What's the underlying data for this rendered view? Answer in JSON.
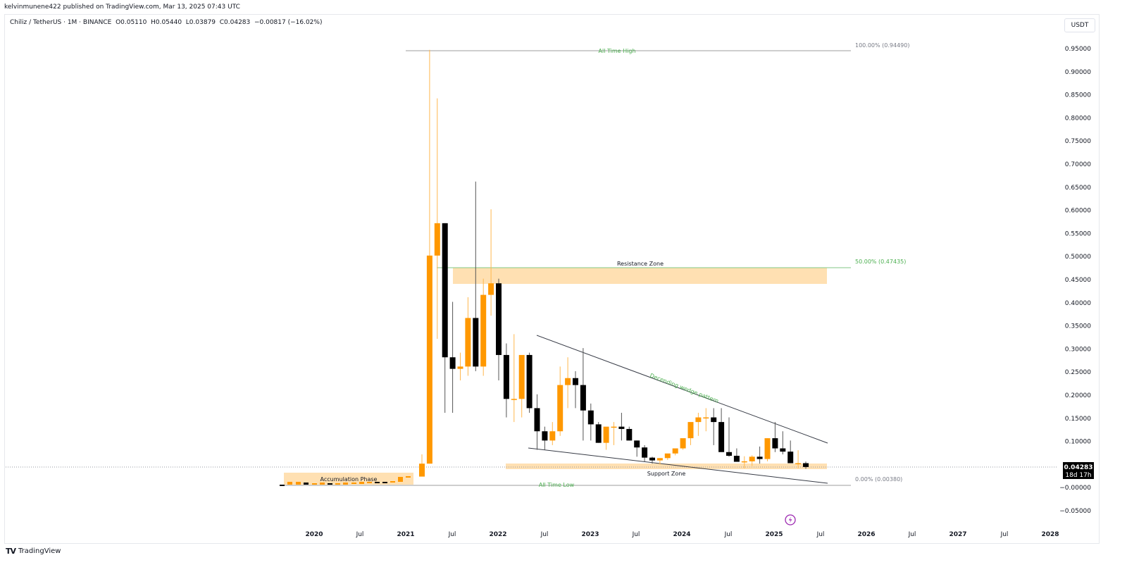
{
  "header": {
    "published": "kelvinmunene422 published on TradingView.com, Mar 13, 2025 07:43 UTC",
    "symbol": "Chiliz / TetherUS · 1M · BINANCE",
    "ohlc": "O0.05110  H0.05440  L0.03879  C0.04283  −0.00817 (−16.02%)",
    "currency_button": "USDT"
  },
  "price_axis": {
    "labels": [
      "0.95000",
      "0.90000",
      "0.85000",
      "0.80000",
      "0.75000",
      "0.70000",
      "0.65000",
      "0.60000",
      "0.55000",
      "0.50000",
      "0.45000",
      "0.40000",
      "0.35000",
      "0.30000",
      "0.25000",
      "0.20000",
      "0.15000",
      "0.10000",
      "0.05000",
      "−0.00000",
      "−0.05000"
    ],
    "current_price": "0.04283",
    "countdown": "18d 17h"
  },
  "time_axis": {
    "labels": [
      "2020",
      "Jul",
      "2021",
      "Jul",
      "2022",
      "Jul",
      "2023",
      "Jul",
      "2024",
      "Jul",
      "2025",
      "Jul",
      "2026",
      "Jul",
      "2027",
      "Jul",
      "2028"
    ]
  },
  "annotations": {
    "ath_label": "All Time High",
    "ath_fib": "100.00% (0.94490)",
    "resistance_label": "Resistance Zone",
    "resistance_fib": "50.00% (0.47435)",
    "wedge_label": "Decending wedge pattern",
    "support_label": "Support Zone",
    "atl_label": "All Time Low",
    "atl_fib": "0.00% (0.00380)",
    "accumulation_label": "Accumulation Phase"
  },
  "colors": {
    "up": "#ff9800",
    "down": "#000000",
    "zone_fill": "#ffe0b2",
    "fib_green": "#4caf50",
    "event_icon": "#9c27b0"
  },
  "footer": {
    "brand": "TradingView"
  },
  "chart_data": {
    "type": "candlestick",
    "title": "Chiliz / TetherUS · 1M · BINANCE",
    "xlabel": "",
    "ylabel": "USDT",
    "ylim": [
      -0.07,
      0.98
    ],
    "grid": false,
    "x": [
      "2021-01",
      "2021-02",
      "2021-03",
      "2021-04",
      "2021-05",
      "2021-06",
      "2021-07",
      "2021-08",
      "2021-09",
      "2021-10",
      "2021-11",
      "2021-12",
      "2022-01",
      "2022-02",
      "2022-03",
      "2022-04",
      "2022-05",
      "2022-06",
      "2022-07",
      "2022-08",
      "2022-09",
      "2022-10",
      "2022-11",
      "2022-12",
      "2023-01",
      "2023-02",
      "2023-03",
      "2023-04",
      "2023-05",
      "2023-06",
      "2023-07",
      "2023-08",
      "2023-09",
      "2023-10",
      "2023-11",
      "2023-12",
      "2024-01",
      "2024-02",
      "2024-03",
      "2024-04",
      "2024-05",
      "2024-06",
      "2024-07",
      "2024-08",
      "2024-09",
      "2024-10",
      "2024-11",
      "2024-12",
      "2025-01",
      "2025-02",
      "2025-03"
    ],
    "open": [
      0.022,
      0.05,
      0.5,
      0.57,
      0.28,
      0.255,
      0.26,
      0.365,
      0.26,
      0.415,
      0.44,
      0.285,
      0.19,
      0.19,
      0.285,
      0.17,
      0.12,
      0.1,
      0.12,
      0.22,
      0.235,
      0.22,
      0.165,
      0.135,
      0.095,
      0.13,
      0.13,
      0.125,
      0.1,
      0.085,
      0.063,
      0.057,
      0.062,
      0.072,
      0.083,
      0.105,
      0.14,
      0.15,
      0.15,
      0.14,
      0.075,
      0.067,
      0.054,
      0.055,
      0.065,
      0.06,
      0.105,
      0.083,
      0.076,
      0.051,
      0.051
    ],
    "high": [
      0.07,
      0.945,
      0.84,
      0.57,
      0.4,
      0.29,
      0.41,
      0.66,
      0.45,
      0.6,
      0.45,
      0.31,
      0.33,
      0.23,
      0.29,
      0.2,
      0.13,
      0.14,
      0.26,
      0.28,
      0.25,
      0.3,
      0.18,
      0.14,
      0.12,
      0.14,
      0.16,
      0.13,
      0.1,
      0.09,
      0.065,
      0.062,
      0.069,
      0.08,
      0.1,
      0.13,
      0.16,
      0.17,
      0.17,
      0.17,
      0.15,
      0.083,
      0.066,
      0.068,
      0.087,
      0.105,
      0.14,
      0.12,
      0.1,
      0.079,
      0.0544
    ],
    "low": [
      0.022,
      0.05,
      0.32,
      0.16,
      0.16,
      0.23,
      0.24,
      0.25,
      0.24,
      0.37,
      0.23,
      0.15,
      0.14,
      0.15,
      0.16,
      0.08,
      0.08,
      0.09,
      0.11,
      0.17,
      0.17,
      0.1,
      0.1,
      0.095,
      0.08,
      0.09,
      0.1,
      0.1,
      0.065,
      0.055,
      0.05,
      0.048,
      0.058,
      0.068,
      0.08,
      0.09,
      0.11,
      0.12,
      0.09,
      0.08,
      0.065,
      0.055,
      0.04,
      0.045,
      0.05,
      0.055,
      0.075,
      0.07,
      0.065,
      0.04,
      0.03879
    ],
    "close": [
      0.05,
      0.5,
      0.57,
      0.28,
      0.255,
      0.26,
      0.365,
      0.26,
      0.415,
      0.44,
      0.285,
      0.19,
      0.19,
      0.285,
      0.17,
      0.12,
      0.1,
      0.12,
      0.22,
      0.235,
      0.22,
      0.165,
      0.135,
      0.095,
      0.13,
      0.13,
      0.125,
      0.1,
      0.085,
      0.063,
      0.057,
      0.062,
      0.072,
      0.083,
      0.105,
      0.14,
      0.15,
      0.15,
      0.14,
      0.075,
      0.067,
      0.054,
      0.055,
      0.065,
      0.06,
      0.105,
      0.083,
      0.076,
      0.051,
      0.051,
      0.04283
    ],
    "levels": [
      {
        "name": "All Time High",
        "fib": "100.00%",
        "price": 0.9449
      },
      {
        "name": "Resistance Zone",
        "fib": "50.00%",
        "price": 0.47435,
        "zone": [
          0.44,
          0.475
        ]
      },
      {
        "name": "Support Zone",
        "zone": [
          0.04,
          0.05
        ]
      },
      {
        "name": "All Time Low",
        "fib": "0.00%",
        "price": 0.0038
      }
    ],
    "pattern": "Descending wedge",
    "last_price": 0.04283
  }
}
